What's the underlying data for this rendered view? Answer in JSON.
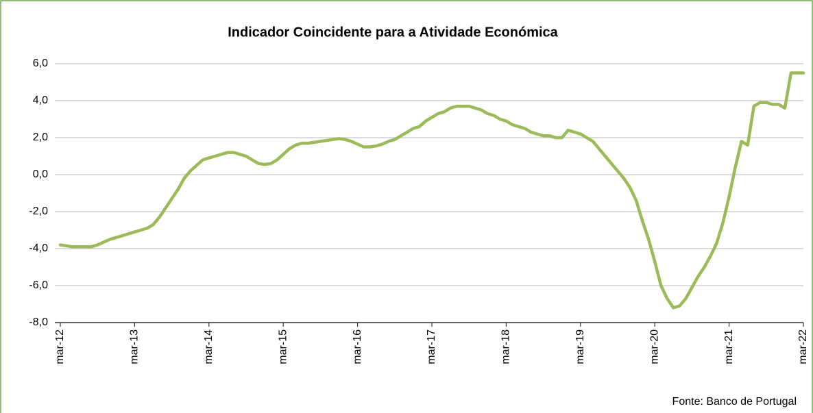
{
  "chart_data": {
    "type": "line",
    "title": "Indicador Coincidente para a Atividade Económica",
    "source": "Fonte: Banco de Portugal",
    "categories": [
      "mar-12",
      null,
      null,
      null,
      null,
      null,
      null,
      null,
      null,
      null,
      null,
      null,
      "mar-13",
      null,
      null,
      null,
      null,
      null,
      null,
      null,
      null,
      null,
      null,
      null,
      "mar-14",
      null,
      null,
      null,
      null,
      null,
      null,
      null,
      null,
      null,
      null,
      null,
      "mar-15",
      null,
      null,
      null,
      null,
      null,
      null,
      null,
      null,
      null,
      null,
      null,
      "mar-16",
      null,
      null,
      null,
      null,
      null,
      null,
      null,
      null,
      null,
      null,
      null,
      "mar-17",
      null,
      null,
      null,
      null,
      null,
      null,
      null,
      null,
      null,
      null,
      null,
      "mar-18",
      null,
      null,
      null,
      null,
      null,
      null,
      null,
      null,
      null,
      null,
      null,
      "mar-19",
      null,
      null,
      null,
      null,
      null,
      null,
      null,
      null,
      null,
      null,
      null,
      "mar-20",
      null,
      null,
      null,
      null,
      null,
      null,
      null,
      null,
      null,
      null,
      null,
      "mar-21",
      null,
      null,
      null,
      null,
      null,
      null,
      null,
      null,
      null,
      null,
      null,
      "mar-22"
    ],
    "values": [
      -3.8,
      -3.85,
      -3.9,
      -3.9,
      -3.9,
      -3.9,
      -3.8,
      -3.65,
      -3.5,
      -3.4,
      -3.3,
      -3.2,
      -3.1,
      -3.0,
      -2.9,
      -2.7,
      -2.3,
      -1.8,
      -1.3,
      -0.8,
      -0.2,
      0.2,
      0.5,
      0.8,
      0.9,
      1.0,
      1.1,
      1.2,
      1.2,
      1.1,
      1.0,
      0.8,
      0.6,
      0.55,
      0.6,
      0.8,
      1.1,
      1.4,
      1.6,
      1.7,
      1.7,
      1.75,
      1.8,
      1.85,
      1.9,
      1.95,
      1.9,
      1.8,
      1.65,
      1.5,
      1.5,
      1.55,
      1.65,
      1.8,
      1.9,
      2.1,
      2.3,
      2.5,
      2.6,
      2.9,
      3.1,
      3.3,
      3.4,
      3.6,
      3.7,
      3.7,
      3.7,
      3.6,
      3.5,
      3.3,
      3.2,
      3.0,
      2.9,
      2.7,
      2.6,
      2.5,
      2.3,
      2.2,
      2.1,
      2.1,
      2.0,
      2.0,
      2.4,
      2.3,
      2.2,
      2.0,
      1.8,
      1.4,
      1.0,
      0.6,
      0.2,
      -0.2,
      -0.7,
      -1.4,
      -2.5,
      -3.5,
      -4.7,
      -6.0,
      -6.7,
      -7.2,
      -7.1,
      -6.7,
      -6.1,
      -5.5,
      -5.0,
      -4.4,
      -3.7,
      -2.6,
      -1.2,
      0.4,
      1.8,
      1.6,
      3.7,
      3.9,
      3.9,
      3.8,
      3.8,
      3.6,
      5.5,
      5.5,
      5.5
    ],
    "color": "#9bbb59",
    "ylim": [
      -8,
      6
    ],
    "yticks": [
      {
        "value": -8,
        "label": "-8,0"
      },
      {
        "value": -6,
        "label": "-6,0"
      },
      {
        "value": -4,
        "label": "-4,0"
      },
      {
        "value": -2,
        "label": "-2,0"
      },
      {
        "value": 0,
        "label": "0,0"
      },
      {
        "value": 2,
        "label": "2,0"
      },
      {
        "value": 4,
        "label": "4,0"
      },
      {
        "value": 6,
        "label": "6,0"
      }
    ],
    "grid": true
  }
}
